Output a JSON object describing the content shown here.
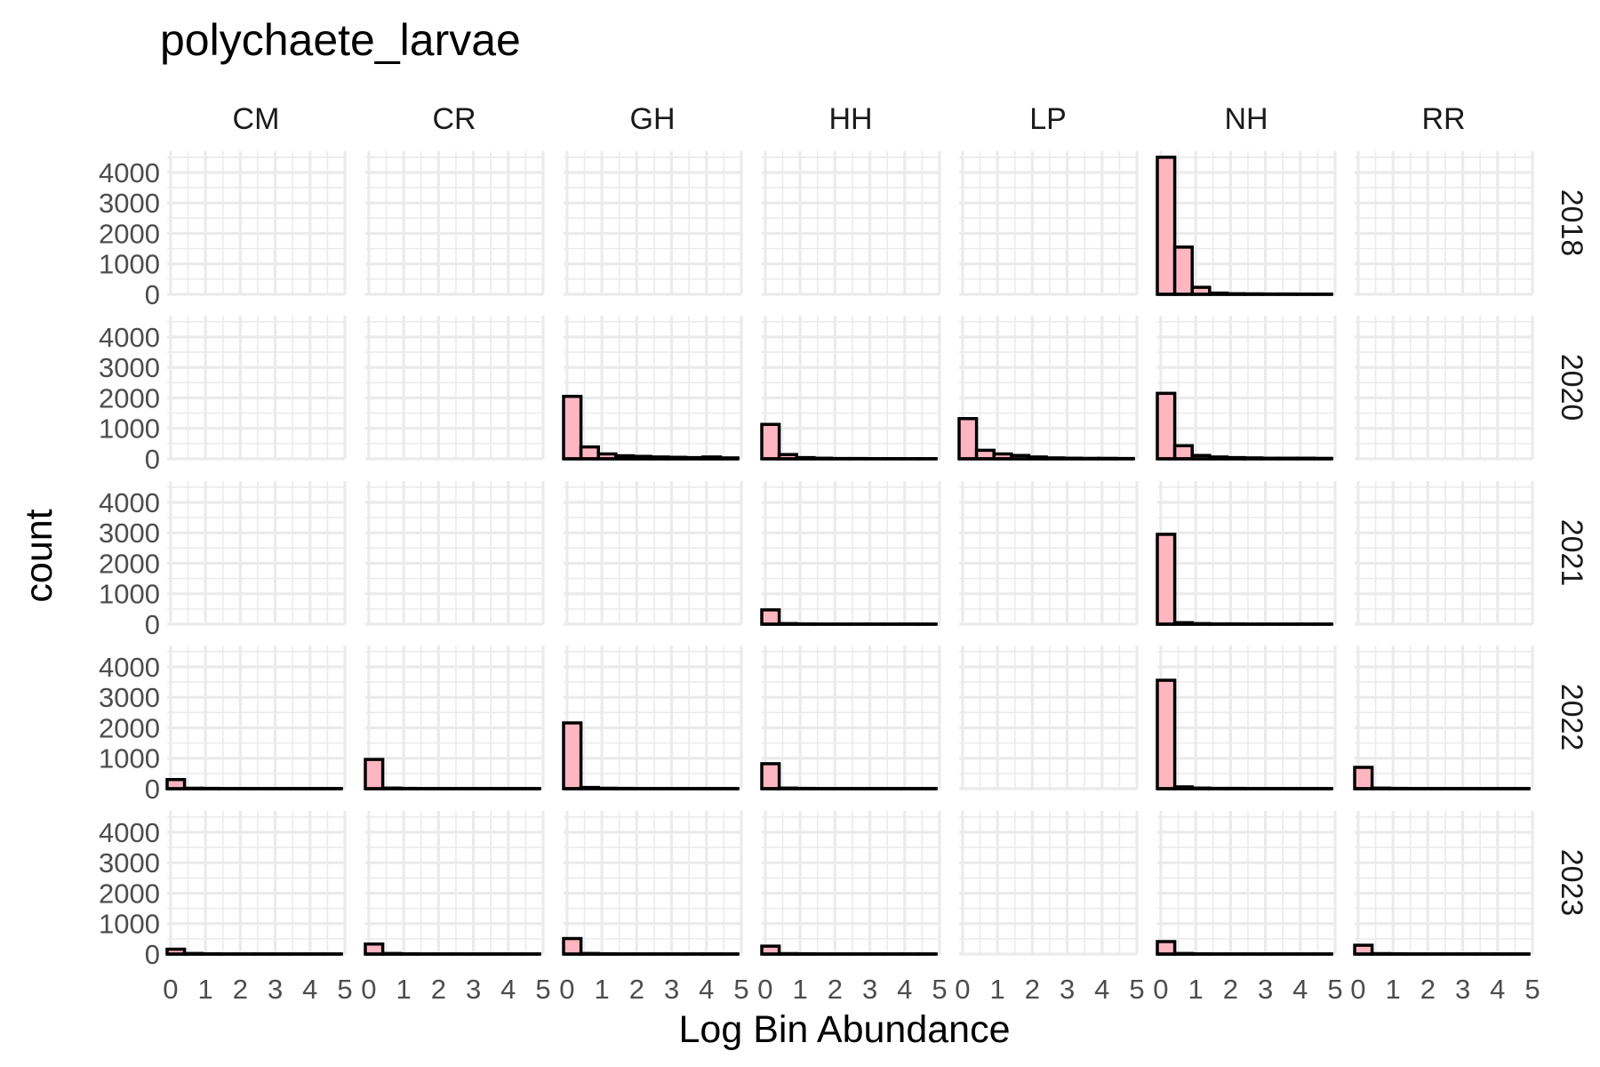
{
  "chart_data": {
    "type": "bar",
    "title": "polychaete_larvae",
    "xlabel": "Log Bin Abundance",
    "ylabel": "count",
    "facet_columns": [
      "CM",
      "CR",
      "GH",
      "HH",
      "LP",
      "NH",
      "RR"
    ],
    "facet_rows": [
      "2018",
      "2020",
      "2021",
      "2022",
      "2023"
    ],
    "xlim": [
      -0.1,
      5
    ],
    "ylim": [
      0,
      4700
    ],
    "x_ticks": [
      0,
      1,
      2,
      3,
      4,
      5
    ],
    "x_tick_labels": [
      "0",
      "1",
      "2",
      "3",
      "4",
      "5"
    ],
    "y_ticks": [
      0,
      1000,
      2000,
      3000,
      4000
    ],
    "y_tick_labels": [
      "0",
      "1000",
      "2000",
      "3000",
      "4000"
    ],
    "bin_width": 0.5,
    "bin_centers": [
      0.15,
      0.65,
      1.15,
      1.65,
      2.15,
      2.65,
      3.15,
      3.65,
      4.15,
      4.65
    ],
    "grid": true,
    "fill_color": "#ffb6c1",
    "outline_color": "#000000",
    "grid_color": "#ebebeb",
    "panels": [
      {
        "row": "2018",
        "col": "NH",
        "counts": [
          4500,
          1550,
          230,
          40,
          20,
          15,
          10,
          10,
          8,
          5
        ]
      },
      {
        "row": "2020",
        "col": "GH",
        "counts": [
          2050,
          390,
          160,
          100,
          80,
          60,
          50,
          40,
          60,
          30
        ]
      },
      {
        "row": "2020",
        "col": "HH",
        "counts": [
          1130,
          140,
          40,
          20,
          10,
          10,
          5,
          5,
          5,
          5
        ]
      },
      {
        "row": "2020",
        "col": "LP",
        "counts": [
          1320,
          280,
          160,
          110,
          60,
          30,
          20,
          15,
          15,
          10
        ]
      },
      {
        "row": "2020",
        "col": "NH",
        "counts": [
          2150,
          430,
          110,
          60,
          40,
          30,
          20,
          20,
          20,
          15
        ]
      },
      {
        "row": "2021",
        "col": "HH",
        "counts": [
          470,
          20,
          10,
          5,
          5,
          5,
          5,
          5,
          5,
          5
        ]
      },
      {
        "row": "2021",
        "col": "NH",
        "counts": [
          2950,
          50,
          20,
          10,
          10,
          5,
          5,
          5,
          5,
          5
        ]
      },
      {
        "row": "2022",
        "col": "CM",
        "counts": [
          300,
          15,
          10,
          5,
          5,
          5,
          5,
          5,
          5,
          5
        ]
      },
      {
        "row": "2022",
        "col": "CR",
        "counts": [
          960,
          20,
          10,
          5,
          5,
          5,
          5,
          5,
          5,
          5
        ]
      },
      {
        "row": "2022",
        "col": "GH",
        "counts": [
          2160,
          40,
          15,
          10,
          5,
          5,
          5,
          5,
          5,
          5
        ]
      },
      {
        "row": "2022",
        "col": "HH",
        "counts": [
          820,
          20,
          10,
          5,
          5,
          5,
          5,
          5,
          5,
          5
        ]
      },
      {
        "row": "2022",
        "col": "NH",
        "counts": [
          3560,
          60,
          20,
          10,
          10,
          5,
          5,
          5,
          5,
          5
        ]
      },
      {
        "row": "2022",
        "col": "RR",
        "counts": [
          700,
          20,
          10,
          5,
          5,
          5,
          5,
          5,
          5,
          5
        ]
      },
      {
        "row": "2023",
        "col": "CM",
        "counts": [
          160,
          20,
          10,
          5,
          5,
          5,
          5,
          5,
          5,
          5
        ]
      },
      {
        "row": "2023",
        "col": "CR",
        "counts": [
          330,
          20,
          10,
          5,
          5,
          5,
          5,
          5,
          5,
          5
        ]
      },
      {
        "row": "2023",
        "col": "GH",
        "counts": [
          510,
          20,
          10,
          5,
          5,
          5,
          5,
          5,
          5,
          5
        ]
      },
      {
        "row": "2023",
        "col": "HH",
        "counts": [
          260,
          15,
          10,
          5,
          5,
          5,
          5,
          5,
          5,
          5
        ]
      },
      {
        "row": "2023",
        "col": "NH",
        "counts": [
          410,
          20,
          10,
          5,
          5,
          5,
          5,
          5,
          5,
          5
        ]
      },
      {
        "row": "2023",
        "col": "RR",
        "counts": [
          290,
          15,
          10,
          5,
          5,
          5,
          5,
          5,
          5,
          5
        ]
      }
    ]
  }
}
